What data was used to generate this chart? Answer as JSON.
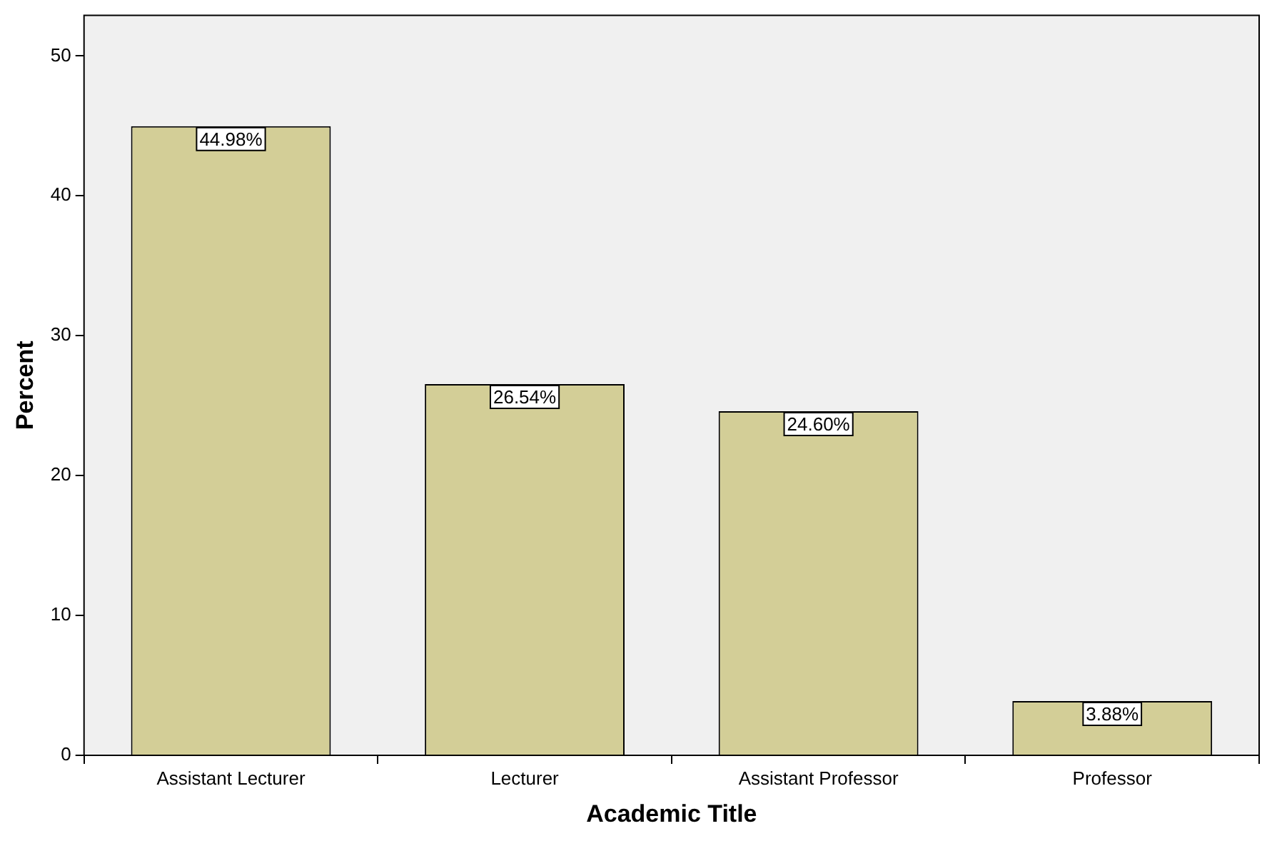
{
  "chart_data": {
    "type": "bar",
    "xlabel": "Academic Title",
    "ylabel": "Percent",
    "categories": [
      "Assistant Lecturer",
      "Lecturer",
      "Assistant Professor",
      "Professor"
    ],
    "values": [
      44.98,
      26.54,
      24.6,
      3.88
    ],
    "value_labels": [
      "44.98%",
      "26.54%",
      "24.60%",
      "3.88%"
    ],
    "color": "#d3ce97",
    "ylim": [
      0,
      52.9
    ],
    "yticks": [
      0,
      10,
      20,
      30,
      40,
      50
    ]
  }
}
